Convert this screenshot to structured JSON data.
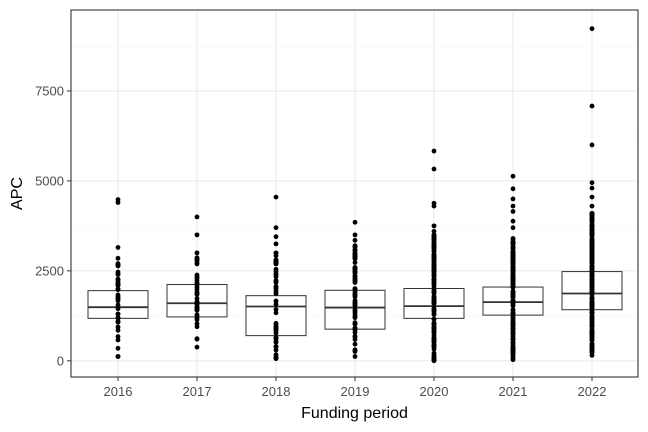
{
  "chart_data": {
    "type": "boxplot",
    "xlabel": "Funding period",
    "ylabel": "APC",
    "categories": [
      "2016",
      "2017",
      "2018",
      "2019",
      "2020",
      "2021",
      "2022"
    ],
    "ylim": [
      -450,
      9750
    ],
    "y_ticks": [
      0,
      2500,
      5000,
      7500
    ],
    "y_tick_labels": [
      "0",
      "2500",
      "5000",
      "7500"
    ],
    "grid": true,
    "boxes": [
      {
        "category": "2016",
        "q1": 1180,
        "median": 1490,
        "q3": 1950
      },
      {
        "category": "2017",
        "q1": 1220,
        "median": 1600,
        "q3": 2120
      },
      {
        "category": "2018",
        "q1": 700,
        "median": 1510,
        "q3": 1810
      },
      {
        "category": "2019",
        "q1": 880,
        "median": 1480,
        "q3": 1960
      },
      {
        "category": "2020",
        "q1": 1180,
        "median": 1520,
        "q3": 2010
      },
      {
        "category": "2021",
        "q1": 1270,
        "median": 1630,
        "q3": 2050
      },
      {
        "category": "2022",
        "q1": 1420,
        "median": 1870,
        "q3": 2480
      }
    ],
    "points": [
      {
        "category": "2016",
        "min": 120,
        "max": 2850,
        "dense": 40,
        "outliers": [
          3150,
          4400,
          4480
        ]
      },
      {
        "category": "2017",
        "min": 380,
        "max": 3000,
        "dense": 40,
        "outliers": [
          3500,
          4000
        ]
      },
      {
        "category": "2018",
        "min": 60,
        "max": 3000,
        "dense": 55,
        "outliers": [
          3250,
          3450,
          3700,
          4550
        ]
      },
      {
        "category": "2019",
        "min": 120,
        "max": 3200,
        "dense": 70,
        "outliers": [
          3350,
          3500,
          3850
        ]
      },
      {
        "category": "2020",
        "min": 0,
        "max": 3500,
        "dense": 130,
        "outliers": [
          3600,
          3750,
          4300,
          4380,
          5330,
          5830
        ]
      },
      {
        "category": "2021",
        "min": 30,
        "max": 3400,
        "dense": 150,
        "outliers": [
          3700,
          3880,
          4150,
          4300,
          4500,
          4780,
          5130
        ]
      },
      {
        "category": "2022",
        "min": 150,
        "max": 4100,
        "dense": 200,
        "outliers": [
          4300,
          4550,
          4800,
          4950,
          6000,
          7080,
          9230
        ]
      }
    ]
  }
}
